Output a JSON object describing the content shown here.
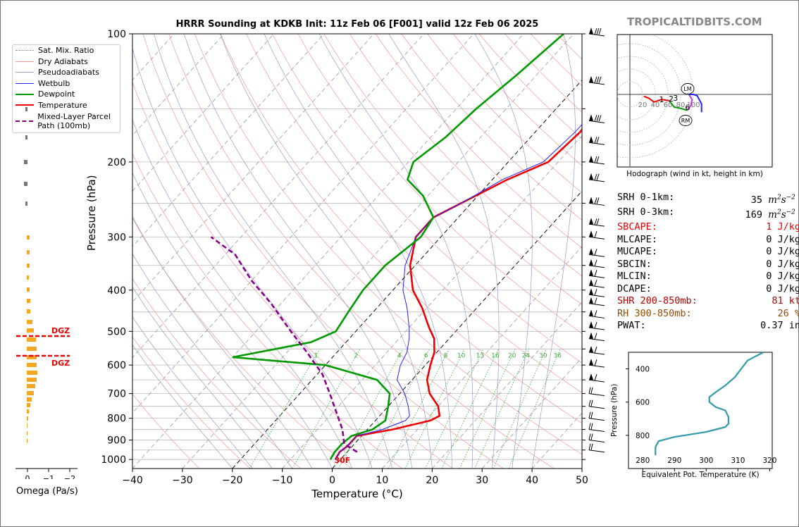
{
  "title": "HRRR Sounding at KDKB Init: 11z Feb 06 [F001] valid 12z Feb 06 2025",
  "brand": "TROPICALTIDBITS.COM",
  "legend": [
    {
      "label": "Sat. Mix. Ratio",
      "color": "#3a3",
      "style": "dotted"
    },
    {
      "label": "Dry Adiabats",
      "color": "#e99",
      "style": "solid"
    },
    {
      "label": "Pseudoadiabats",
      "color": "#99c",
      "style": "solid"
    },
    {
      "label": "Wetbulb",
      "color": "#22f",
      "style": "solid"
    },
    {
      "label": "Dewpoint",
      "color": "#090",
      "style": "solid"
    },
    {
      "label": "Temperature",
      "color": "#e00",
      "style": "solid"
    },
    {
      "label": "Mixed-Layer Parcel Path (100mb)",
      "color": "#808",
      "style": "dashed"
    }
  ],
  "omega": {
    "label": "Omega (Pa/s)",
    "ticks": [
      "0",
      "−1",
      "−2"
    ],
    "dgz_label": "DGZ"
  },
  "surface_temp_label": "30F",
  "hodograph": {
    "caption": "Hodograph (wind in kt, height in km)",
    "rings": [
      "20",
      "40",
      "60",
      "80",
      "100"
    ],
    "height_labels": [
      "1",
      "2",
      "3",
      "6",
      "9"
    ],
    "markers": [
      "LM",
      "RM"
    ]
  },
  "stats": [
    {
      "label": "SRH 0-1km:",
      "value": "35",
      "unit_html": "m2s-2",
      "color": "#000"
    },
    {
      "label": "SRH 0-3km:",
      "value": "169",
      "unit_html": "m2s-2",
      "color": "#000"
    },
    {
      "label": "SBCAPE:",
      "value": "1 J/kg",
      "color": "#e00"
    },
    {
      "label": "MLCAPE:",
      "value": "0 J/kg",
      "color": "#000"
    },
    {
      "label": "MUCAPE:",
      "value": "0 J/kg",
      "color": "#000"
    },
    {
      "label": "SBCIN:",
      "value": "0 J/kg",
      "color": "#000"
    },
    {
      "label": "MLCIN:",
      "value": "0 J/kg",
      "color": "#000"
    },
    {
      "label": "DCAPE:",
      "value": "0 J/kg",
      "color": "#000"
    },
    {
      "label": "SHR 200-850mb:",
      "value": "81 kt",
      "color": "#b00"
    },
    {
      "label": "RH 300-850mb:",
      "value": "26 %",
      "color": "#964B00"
    },
    {
      "label": "PWAT:",
      "value": "0.37 in",
      "color": "#000"
    }
  ],
  "theta_panel": {
    "xlabel": "Equivalent Pot. Temperature (K)",
    "ylabel": "Pressure (hPa)",
    "xticks": [
      "280",
      "290",
      "300",
      "310",
      "320"
    ],
    "yticks": [
      "400",
      "600",
      "800"
    ]
  },
  "chart_data": {
    "type": "line",
    "title": "HRRR Sounding at KDKB Init: 11z Feb 06 [F001] valid 12z Feb 06 2025",
    "xlabel": "Temperature (°C)",
    "ylabel": "Pressure (hPa)",
    "xlim": [
      -40,
      50
    ],
    "ylim": [
      1050,
      100
    ],
    "yscale": "log",
    "xticks": [
      "−40",
      "−30",
      "−20",
      "−10",
      "0",
      "10",
      "20",
      "30",
      "40",
      "50"
    ],
    "yticks": [
      "100",
      "200",
      "300",
      "400",
      "500",
      "600",
      "700",
      "800",
      "900",
      "1000"
    ],
    "mixing_ratio_labels": [
      "1",
      "2",
      "4",
      "6",
      "8",
      "10",
      "13",
      "16",
      "20",
      "24",
      "30",
      "36"
    ],
    "series": [
      {
        "name": "Temperature",
        "color": "#e00",
        "points": [
          [
            -1,
            1000
          ],
          [
            -1.5,
            960
          ],
          [
            -1,
            930
          ],
          [
            -1,
            880
          ],
          [
            5,
            850
          ],
          [
            11,
            810
          ],
          [
            12,
            790
          ],
          [
            10,
            750
          ],
          [
            6,
            700
          ],
          [
            3,
            650
          ],
          [
            1,
            600
          ],
          [
            -0.5,
            560
          ],
          [
            -3,
            520
          ],
          [
            -6,
            490
          ],
          [
            -11,
            440
          ],
          [
            -16,
            400
          ],
          [
            -21,
            350
          ],
          [
            -25,
            300
          ],
          [
            -25,
            270
          ],
          [
            -22,
            250
          ],
          [
            -17,
            220
          ],
          [
            -12,
            200
          ],
          [
            -11,
            170
          ],
          [
            -12,
            150
          ],
          [
            -13,
            125
          ],
          [
            -13,
            100
          ]
        ]
      },
      {
        "name": "Wetbulb",
        "color": "#22f",
        "points": [
          [
            -1,
            1000
          ],
          [
            -1.5,
            960
          ],
          [
            -1,
            930
          ],
          [
            -1,
            880
          ],
          [
            3,
            850
          ],
          [
            6,
            810
          ],
          [
            6,
            790
          ],
          [
            4,
            750
          ],
          [
            1,
            700
          ],
          [
            -3,
            650
          ],
          [
            -5,
            600
          ],
          [
            -6,
            560
          ],
          [
            -8,
            520
          ],
          [
            -10,
            490
          ],
          [
            -14,
            440
          ],
          [
            -18,
            400
          ],
          [
            -22,
            350
          ],
          [
            -25,
            300
          ],
          [
            -25,
            270
          ],
          [
            -22,
            250
          ],
          [
            -18,
            220
          ],
          [
            -13,
            200
          ],
          [
            -12,
            170
          ],
          [
            -12,
            150
          ],
          [
            -13,
            125
          ],
          [
            -13,
            100
          ]
        ]
      },
      {
        "name": "Dewpoint",
        "color": "#090",
        "points": [
          [
            -2,
            1000
          ],
          [
            -2.5,
            960
          ],
          [
            -2.5,
            920
          ],
          [
            -2,
            880
          ],
          [
            1,
            850
          ],
          [
            2,
            810
          ],
          [
            0,
            750
          ],
          [
            -2,
            700
          ],
          [
            -7,
            650
          ],
          [
            -20,
            600
          ],
          [
            -40,
            575
          ],
          [
            -27,
            530
          ],
          [
            -24,
            500
          ],
          [
            -25,
            450
          ],
          [
            -26,
            400
          ],
          [
            -26,
            350
          ],
          [
            -24,
            300
          ],
          [
            -25,
            270
          ],
          [
            -31,
            240
          ],
          [
            -37,
            220
          ],
          [
            -39,
            200
          ],
          [
            -37,
            175
          ],
          [
            -36,
            150
          ],
          [
            -34,
            125
          ],
          [
            -32,
            100
          ]
        ]
      },
      {
        "name": "Mixed-Layer Parcel Path (100mb)",
        "color": "#808",
        "style": "dashed",
        "points": [
          [
            2,
            960
          ],
          [
            -2,
            920
          ],
          [
            -5,
            850
          ],
          [
            -9,
            780
          ],
          [
            -14,
            700
          ],
          [
            -19,
            630
          ],
          [
            -26,
            560
          ],
          [
            -33,
            500
          ],
          [
            -42,
            430
          ],
          [
            -50,
            380
          ],
          [
            -58,
            330
          ],
          [
            -66,
            300
          ]
        ]
      }
    ]
  }
}
